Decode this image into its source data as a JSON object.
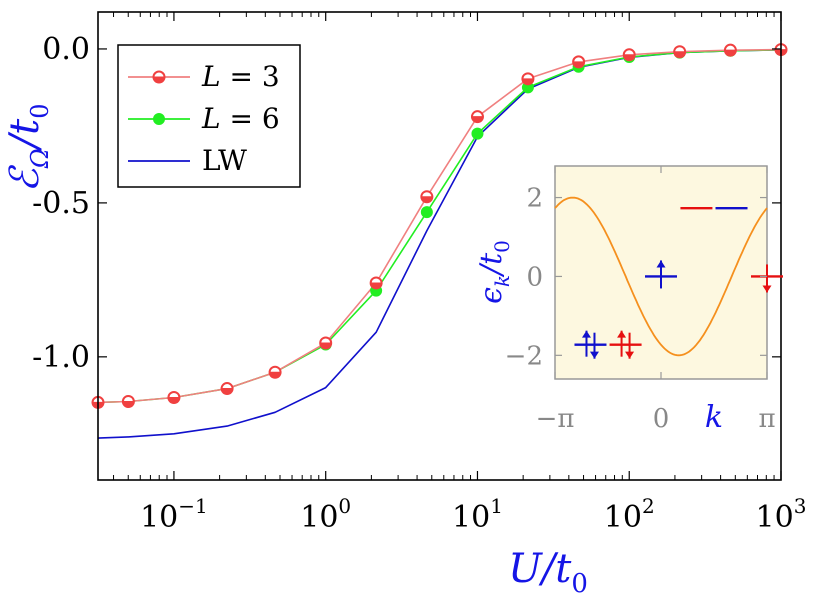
{
  "chart_data": [
    {
      "type": "line",
      "xscale": "log",
      "xlim": [
        0.0316,
        1000
      ],
      "ylim": [
        -1.4,
        0.12
      ],
      "xlabel": "U/t0",
      "ylabel": "EΩ/t0",
      "xtick_labels": [
        {
          "base": "10",
          "exp": "−1"
        },
        {
          "base": "10",
          "exp": "0"
        },
        {
          "base": "10",
          "exp": "1"
        },
        {
          "base": "10",
          "exp": "2"
        },
        {
          "base": "10",
          "exp": "3"
        }
      ],
      "yticks": [
        {
          "value": 0.0,
          "label": "0.0"
        },
        {
          "value": -0.5,
          "label": "-0.5"
        },
        {
          "value": -1.0,
          "label": "-1.0"
        }
      ],
      "legend_position": "top-left",
      "series": [
        {
          "name": "L = 3",
          "legend_math": "L = 3",
          "color": "#f04040",
          "line_color": "#f08080",
          "marker": "half-filled-circle",
          "x": [
            0.0316,
            0.0501,
            0.1,
            0.224,
            0.464,
            1.0,
            2.15,
            4.64,
            10.0,
            21.5,
            46.4,
            100,
            215,
            464,
            1000
          ],
          "y": [
            -1.148,
            -1.145,
            -1.132,
            -1.103,
            -1.05,
            -0.955,
            -0.76,
            -0.48,
            -0.22,
            -0.097,
            -0.042,
            -0.019,
            -0.009,
            -0.004,
            -0.002
          ]
        },
        {
          "name": "L = 6",
          "legend_math": "L = 6",
          "color": "#22ee22",
          "line_color": "#22ee22",
          "marker": "filled-circle",
          "x": [
            0.0316,
            0.0501,
            0.1,
            0.224,
            0.464,
            1.0,
            2.15,
            4.64,
            10.0,
            21.5,
            46.4,
            100,
            215,
            464,
            1000
          ],
          "y": [
            -1.148,
            -1.145,
            -1.132,
            -1.103,
            -1.05,
            -0.96,
            -0.785,
            -0.53,
            -0.275,
            -0.125,
            -0.058,
            -0.026,
            -0.012,
            -0.006,
            -0.003
          ]
        },
        {
          "name": "LW",
          "legend_math": "LW",
          "color": "#1010cc",
          "line_color": "#1010cc",
          "marker": "none",
          "x": [
            0.0316,
            0.0501,
            0.1,
            0.224,
            0.464,
            1.0,
            2.15,
            4.64,
            10.0,
            21.5,
            46.4,
            100,
            215,
            464,
            1000
          ],
          "y": [
            -1.264,
            -1.26,
            -1.25,
            -1.225,
            -1.18,
            -1.1,
            -0.92,
            -0.59,
            -0.285,
            -0.13,
            -0.06,
            -0.027,
            -0.012,
            -0.006,
            -0.003
          ]
        }
      ]
    },
    {
      "type": "line",
      "role": "inset",
      "xlim": [
        -3.1416,
        3.1416
      ],
      "ylim": [
        -2.6,
        2.8
      ],
      "xlabel": "k",
      "ylabel": "εk/t0",
      "xticks": [
        {
          "value": -3.1416,
          "label": "−π"
        },
        {
          "value": 0,
          "label": "0"
        },
        {
          "value": 3.1416,
          "label": "π"
        }
      ],
      "yticks": [
        {
          "value": 2,
          "label": "2"
        },
        {
          "value": 0,
          "label": "0"
        },
        {
          "value": -2,
          "label": "−2"
        }
      ],
      "background": "#fdf8e0",
      "curve": {
        "formula": "-2 cos(k - π/6)",
        "color": "#f5901e"
      },
      "levels": [
        {
          "k": -2.09,
          "energy": -1.73,
          "color": "#1010cc",
          "spins": "up-down"
        },
        {
          "k": -1.05,
          "energy": -1.73,
          "color": "#e61010",
          "spins": "up-down"
        },
        {
          "k": 0.0,
          "energy": 0.0,
          "color": "#1010cc",
          "spins": "up"
        },
        {
          "k": 1.05,
          "energy": 1.73,
          "color": "#e61010",
          "spins": "none"
        },
        {
          "k": 2.09,
          "energy": 1.73,
          "color": "#1010cc",
          "spins": "none"
        },
        {
          "k": 3.1416,
          "energy": 0.0,
          "color": "#e61010",
          "spins": "down"
        }
      ]
    }
  ]
}
